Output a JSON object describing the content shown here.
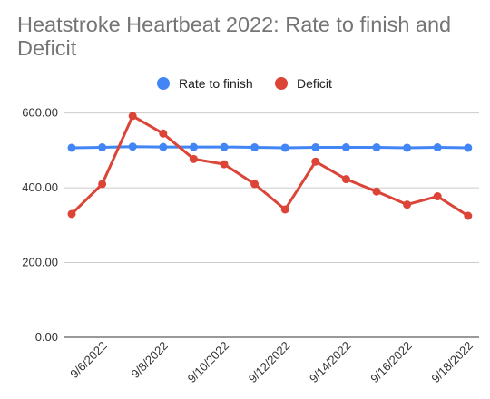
{
  "chart_data": {
    "type": "line",
    "title": "Heatstroke Heartbeat 2022: Rate to finish and Deficit",
    "xlabel": "",
    "ylabel": "",
    "x": [
      "9/5/2022",
      "9/6/2022",
      "9/7/2022",
      "9/8/2022",
      "9/9/2022",
      "9/10/2022",
      "9/11/2022",
      "9/12/2022",
      "9/13/2022",
      "9/14/2022",
      "9/15/2022",
      "9/16/2022",
      "9/17/2022",
      "9/18/2022"
    ],
    "x_tick_labels": [
      "9/6/2022",
      "9/8/2022",
      "9/10/2022",
      "9/12/2022",
      "9/14/2022",
      "9/16/2022",
      "9/18/2022"
    ],
    "y_tick_labels": [
      "0.00",
      "200.00",
      "400.00",
      "600.00"
    ],
    "ylim": [
      0,
      650
    ],
    "grid": true,
    "legend_position": "top",
    "series": [
      {
        "name": "Rate to finish",
        "color": "#4285f4",
        "values": [
          507,
          508,
          510,
          509,
          509,
          509,
          508,
          507,
          508,
          508,
          508,
          507,
          508,
          507
        ]
      },
      {
        "name": "Deficit",
        "color": "#db4437",
        "values": [
          330,
          410,
          592,
          545,
          477,
          463,
          410,
          342,
          470,
          423,
          390,
          355,
          377,
          325
        ]
      }
    ]
  }
}
